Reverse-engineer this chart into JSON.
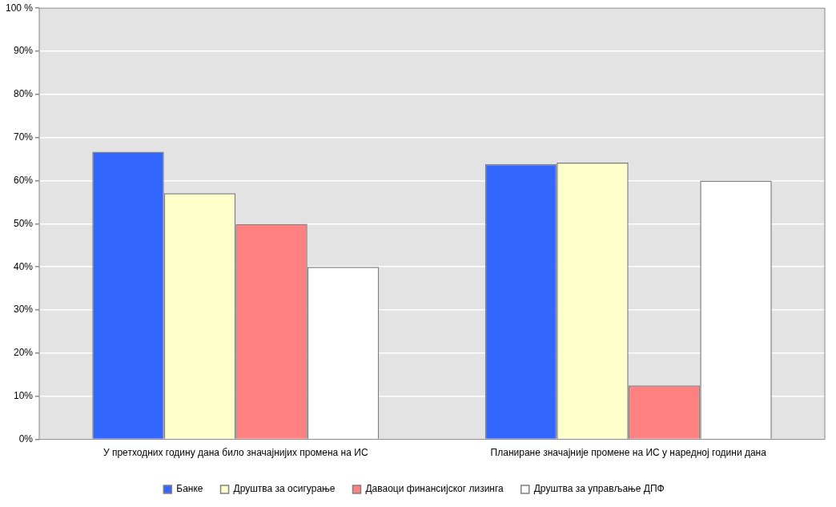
{
  "chart_data": {
    "type": "bar",
    "categories": [
      "У претходних годину дана било значајнијих промена на ИС",
      "Планиране значајније промене на ИС у наредној години дана"
    ],
    "series": [
      {
        "name": "Банке",
        "color": "#3366ff",
        "values": [
          66.7,
          63.8
        ]
      },
      {
        "name": "Друштва за осигурање",
        "color": "#ffffcc",
        "values": [
          57.1,
          64.2
        ]
      },
      {
        "name": "Даваоци финансијског лизинга",
        "color": "#ff8080",
        "values": [
          50,
          12.5
        ]
      },
      {
        "name": "Друштва за управљање ДПФ",
        "color": "#ffffff",
        "values": [
          40,
          60
        ]
      }
    ],
    "ylim": [
      0,
      100
    ],
    "yticks": [
      {
        "value": 0,
        "label": "0%"
      },
      {
        "value": 10,
        "label": "10%"
      },
      {
        "value": 20,
        "label": "20%"
      },
      {
        "value": 30,
        "label": "30%"
      },
      {
        "value": 40,
        "label": "40%"
      },
      {
        "value": 50,
        "label": "50%"
      },
      {
        "value": 60,
        "label": "60%"
      },
      {
        "value": 70,
        "label": "70%"
      },
      {
        "value": 80,
        "label": "80%"
      },
      {
        "value": 90,
        "label": "90%"
      },
      {
        "value": 100,
        "label": "100 %"
      }
    ],
    "grid": "y",
    "legend": "bottom"
  }
}
